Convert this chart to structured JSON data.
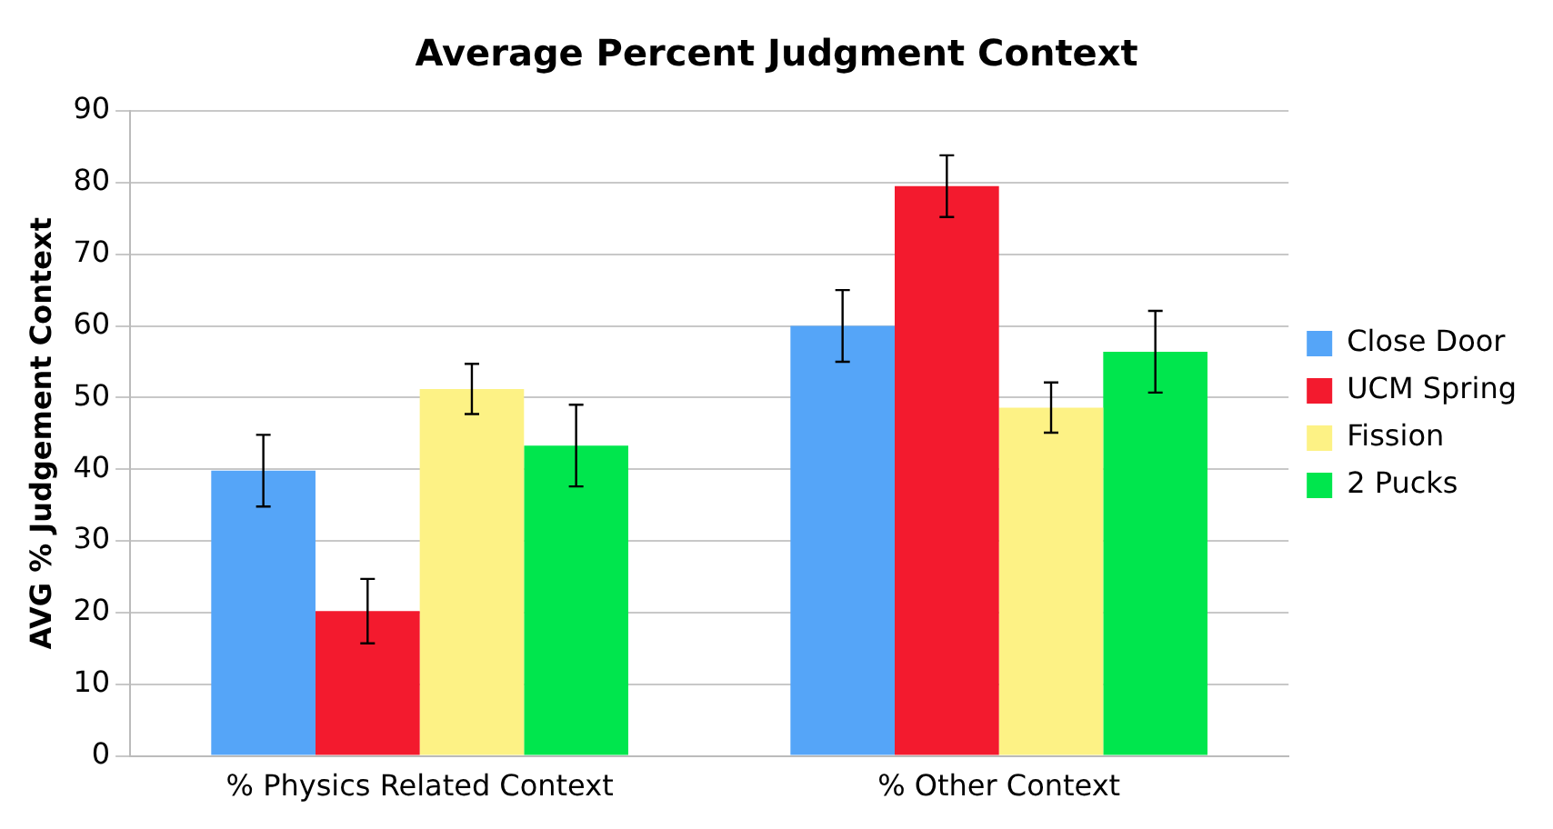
{
  "chart_data": {
    "type": "bar",
    "title": "Average Percent Judgment Context",
    "ylabel": "AVG % Judgement Context",
    "categories": [
      "% Physics Related Context",
      "% Other Context"
    ],
    "series": [
      {
        "name": "Close Door",
        "color": "#55a5f8",
        "values": [
          39.8,
          60.0
        ],
        "errors": [
          5.0,
          5.0
        ]
      },
      {
        "name": "UCM Spring",
        "color": "#f31a2e",
        "values": [
          20.2,
          79.5
        ],
        "errors": [
          4.5,
          4.3
        ]
      },
      {
        "name": "Fission",
        "color": "#fdf285",
        "values": [
          51.2,
          48.6
        ],
        "errors": [
          3.5,
          3.5
        ]
      },
      {
        "name": "2 Pucks",
        "color": "#00e64d",
        "values": [
          43.3,
          56.4
        ],
        "errors": [
          5.7,
          5.7
        ]
      }
    ],
    "ylim": [
      0,
      90
    ],
    "yticks": [
      0,
      10,
      20,
      30,
      40,
      50,
      60,
      70,
      80,
      90
    ],
    "grid": "y",
    "legend": "right"
  }
}
